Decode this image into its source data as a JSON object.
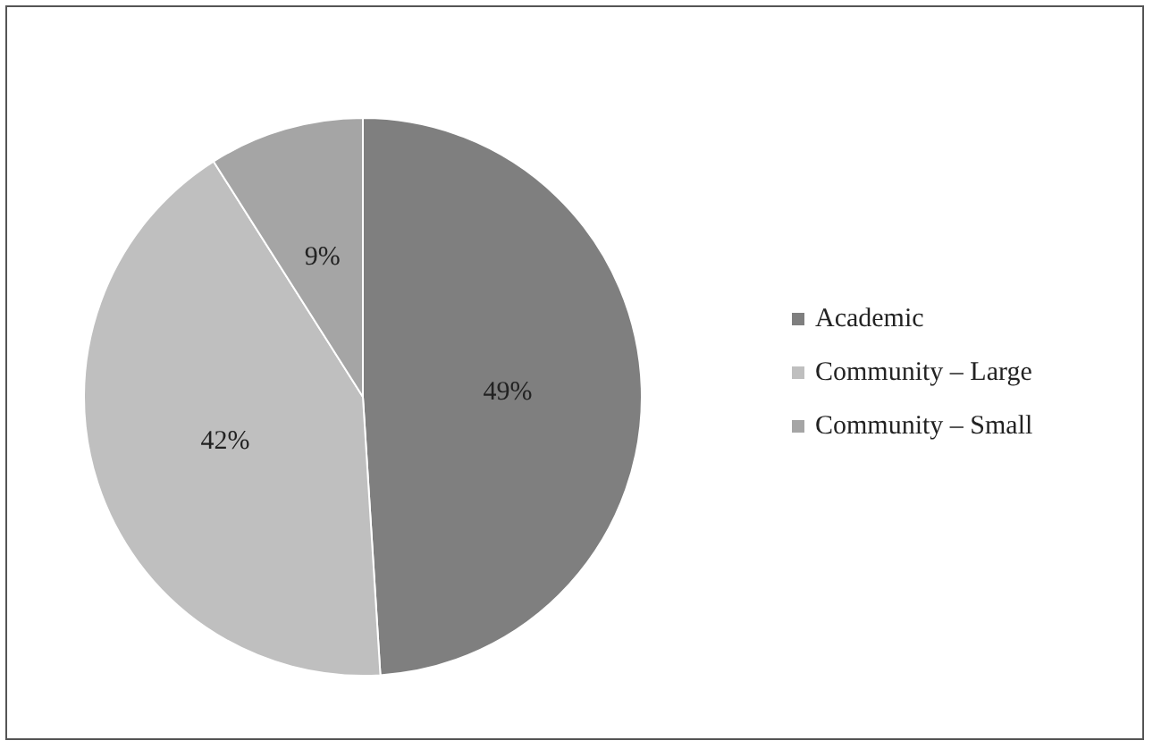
{
  "chart_data": {
    "type": "pie",
    "categories": [
      "Academic",
      "Community – Large",
      "Community – Small"
    ],
    "values": [
      49,
      42,
      9
    ],
    "value_labels": [
      "49%",
      "42%",
      "9%"
    ],
    "colors": [
      "#7f7f7f",
      "#bfbfbf",
      "#a5a5a5"
    ],
    "legend": "right"
  }
}
